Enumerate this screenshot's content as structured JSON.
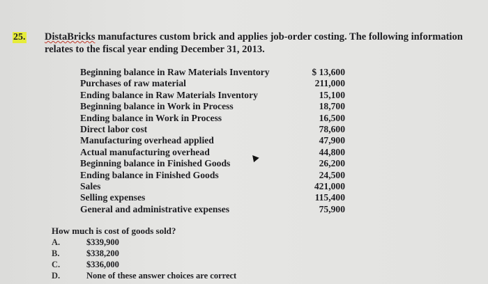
{
  "question_number": "25.",
  "intro": {
    "company": "DistaBricks",
    "text": " manufactures custom brick and applies job-order costing. The following information relates to the fiscal year ending December 31, 2013."
  },
  "items": [
    {
      "label": "Beginning balance in Raw Materials Inventory",
      "value": "$ 13,600"
    },
    {
      "label": "Purchases of raw material",
      "value": "211,000"
    },
    {
      "label": "Ending balance in Raw Materials Inventory",
      "value": "15,100"
    },
    {
      "label": "Beginning balance in Work in Process",
      "value": "18,700"
    },
    {
      "label": "Ending balance in Work in Process",
      "value": "16,500"
    },
    {
      "label": "Direct labor cost",
      "value": "78,600"
    },
    {
      "label": "Manufacturing overhead applied",
      "value": "47,900"
    },
    {
      "label": "Actual manufacturing overhead",
      "value": "44,800"
    },
    {
      "label": "Beginning balance in Finished Goods",
      "value": "26,200"
    },
    {
      "label": "Ending balance in Finished Goods",
      "value": "24,500"
    },
    {
      "label": "Sales",
      "value": "421,000"
    },
    {
      "label": "Selling expenses",
      "value": "115,400"
    },
    {
      "label": "General and administrative expenses",
      "value": "75,900"
    }
  ],
  "question": "How much is cost of goods sold?",
  "choices": [
    {
      "letter": "A.",
      "text": "$339,900"
    },
    {
      "letter": "B.",
      "text": "$338,200"
    },
    {
      "letter": "C.",
      "text": "$336,000"
    },
    {
      "letter": "D.",
      "text": "None of these answer choices are correct"
    }
  ],
  "highlight_color": "#e6ec3a"
}
